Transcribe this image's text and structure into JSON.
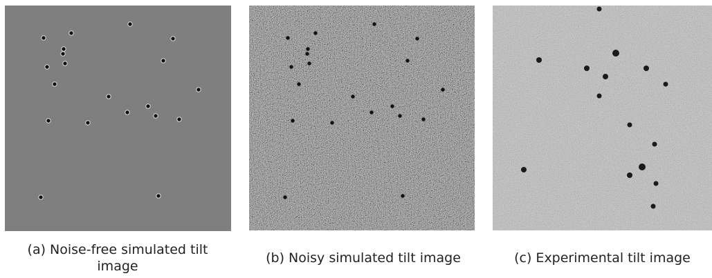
{
  "figure": {
    "panels": [
      {
        "caption": "(a) Noise-free simulated tilt image"
      },
      {
        "caption": "(b) Noisy simulated tilt image"
      },
      {
        "caption": "(c) Experimental tilt image"
      }
    ]
  }
}
